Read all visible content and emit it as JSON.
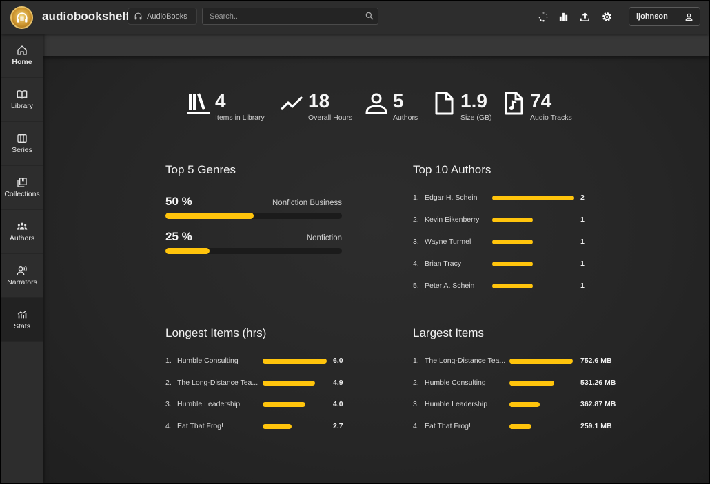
{
  "app": {
    "title": "audiobookshelf"
  },
  "header": {
    "library_label": "AudioBooks",
    "search_placeholder": "Search..",
    "username": "ijohnson"
  },
  "sidebar": {
    "items": [
      {
        "label": "Home",
        "icon": "home-icon"
      },
      {
        "label": "Library",
        "icon": "book-icon"
      },
      {
        "label": "Series",
        "icon": "columns-icon"
      },
      {
        "label": "Collections",
        "icon": "collection-icon"
      },
      {
        "label": "Authors",
        "icon": "people-icon"
      },
      {
        "label": "Narrators",
        "icon": "narrator-icon"
      },
      {
        "label": "Stats",
        "icon": "stats-icon"
      }
    ],
    "active": "Stats"
  },
  "stats": [
    {
      "value": "4",
      "label": "Items in Library",
      "icon": "library-icon"
    },
    {
      "value": "18",
      "label": "Overall Hours",
      "icon": "trend-icon"
    },
    {
      "value": "5",
      "label": "Authors",
      "icon": "person-icon"
    },
    {
      "value": "1.9",
      "label": "Size (GB)",
      "icon": "file-icon"
    },
    {
      "value": "74",
      "label": "Audio Tracks",
      "icon": "audio-file-icon"
    }
  ],
  "genres": {
    "title": "Top 5 Genres",
    "items": [
      {
        "percent": "50 %",
        "name": "Nonfiction Business",
        "fraction": 0.5
      },
      {
        "percent": "25 %",
        "name": "Nonfiction",
        "fraction": 0.25
      }
    ]
  },
  "authors": {
    "title": "Top 10 Authors",
    "items": [
      {
        "rank": "1.",
        "name": "Edgar H. Schein",
        "value": "2",
        "count": 2
      },
      {
        "rank": "2.",
        "name": "Kevin Eikenberry",
        "value": "1",
        "count": 1
      },
      {
        "rank": "3.",
        "name": "Wayne Turmel",
        "value": "1",
        "count": 1
      },
      {
        "rank": "4.",
        "name": "Brian Tracy",
        "value": "1",
        "count": 1
      },
      {
        "rank": "5.",
        "name": "Peter A. Schein",
        "value": "1",
        "count": 1
      }
    ]
  },
  "longest": {
    "title": "Longest Items (hrs)",
    "items": [
      {
        "rank": "1.",
        "name": "Humble Consulting",
        "value": "6.0",
        "amount": 6.0
      },
      {
        "rank": "2.",
        "name": "The Long-Distance Tea...",
        "value": "4.9",
        "amount": 4.9
      },
      {
        "rank": "3.",
        "name": "Humble Leadership",
        "value": "4.0",
        "amount": 4.0
      },
      {
        "rank": "4.",
        "name": "Eat That Frog!",
        "value": "2.7",
        "amount": 2.7
      }
    ]
  },
  "largest": {
    "title": "Largest Items",
    "items": [
      {
        "rank": "1.",
        "name": "The Long-Distance Tea...",
        "value": "752.6 MB",
        "amount": 752.6
      },
      {
        "rank": "2.",
        "name": "Humble Consulting",
        "value": "531.26 MB",
        "amount": 531.26
      },
      {
        "rank": "3.",
        "name": "Humble Leadership",
        "value": "362.87 MB",
        "amount": 362.87
      },
      {
        "rank": "4.",
        "name": "Eat That Frog!",
        "value": "259.1 MB",
        "amount": 259.1
      }
    ]
  },
  "colors": {
    "accent": "#ffc40c",
    "background": "#232323",
    "topbar": "#2d2d2d"
  }
}
